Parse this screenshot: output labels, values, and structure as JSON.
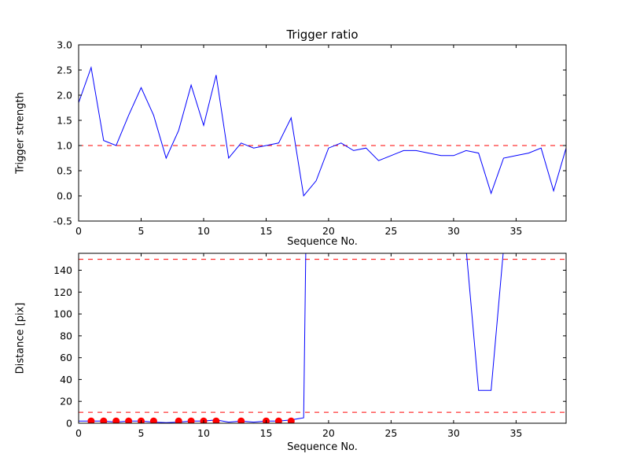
{
  "figure": {
    "background": "#ffffff",
    "axis_color": "#000000"
  },
  "chart_data": [
    {
      "type": "line",
      "title": "Trigger ratio",
      "xlabel": "Sequence No.",
      "ylabel": "Trigger strength",
      "xlim": [
        0,
        39
      ],
      "ylim": [
        -0.5,
        3.0
      ],
      "xticks": [
        0,
        5,
        10,
        15,
        20,
        25,
        30,
        35
      ],
      "yticks": [
        -0.5,
        0.0,
        0.5,
        1.0,
        1.5,
        2.0,
        2.5,
        3.0
      ],
      "grid": false,
      "legend": "none",
      "series": [
        {
          "name": "trigger-strength",
          "color": "#0000ff",
          "x": [
            0,
            1,
            2,
            3,
            4,
            5,
            6,
            7,
            8,
            9,
            10,
            11,
            12,
            13,
            14,
            15,
            16,
            17,
            18,
            19,
            20,
            21,
            22,
            23,
            24,
            25,
            26,
            27,
            28,
            29,
            30,
            31,
            32,
            33,
            34,
            35,
            36,
            37,
            38,
            39
          ],
          "y": [
            1.85,
            2.55,
            1.1,
            1.0,
            1.6,
            2.15,
            1.6,
            0.75,
            1.3,
            2.2,
            1.4,
            2.4,
            0.75,
            1.05,
            0.95,
            1.0,
            1.05,
            1.55,
            0.0,
            0.3,
            0.95,
            1.05,
            0.9,
            0.95,
            0.7,
            0.8,
            0.9,
            0.9,
            0.85,
            0.8,
            0.8,
            0.9,
            0.85,
            0.05,
            0.75,
            0.8,
            0.85,
            0.95,
            0.1,
            0.95
          ]
        }
      ],
      "hlines": [
        {
          "y": 1.0,
          "color": "#ff0000",
          "style": "dashed"
        }
      ]
    },
    {
      "type": "line",
      "title": "",
      "xlabel": "Sequence No.",
      "ylabel": "Distance [pix]",
      "xlim": [
        0,
        39
      ],
      "ylim": [
        0,
        155.5
      ],
      "xticks": [
        0,
        5,
        10,
        15,
        20,
        25,
        30,
        35
      ],
      "yticks": [
        0,
        20,
        40,
        60,
        80,
        100,
        120,
        140
      ],
      "grid": false,
      "legend": "none",
      "series": [
        {
          "name": "distance",
          "color": "#0000ff",
          "x": [
            0,
            1,
            2,
            3,
            4,
            5,
            6,
            7,
            8,
            9,
            10,
            11,
            12,
            13,
            14,
            15,
            16,
            17,
            18,
            19,
            20,
            21,
            22,
            23,
            24,
            25,
            26,
            27,
            28,
            29,
            30,
            31,
            32,
            33,
            34,
            35,
            36,
            37,
            38,
            39
          ],
          "y": [
            2,
            2,
            2,
            1,
            2,
            2,
            1,
            0.5,
            1,
            2,
            2,
            3,
            1,
            2,
            1,
            2,
            2,
            3,
            5,
            900,
            900,
            900,
            900,
            900,
            900,
            900,
            900,
            900,
            900,
            900,
            900,
            160,
            30,
            30,
            160,
            900,
            900,
            900,
            900,
            900
          ]
        }
      ],
      "markers": {
        "name": "matched-distance-points",
        "color": "#ff0000",
        "x": [
          1,
          2,
          3,
          4,
          5,
          6,
          8,
          9,
          10,
          11,
          13,
          15,
          16,
          17
        ],
        "y": [
          2,
          2,
          2,
          2,
          2,
          2,
          2,
          2,
          2,
          2,
          2,
          2,
          2,
          2
        ]
      },
      "hlines": [
        {
          "y": 150,
          "color": "#ff0000",
          "style": "dashed"
        },
        {
          "y": 10,
          "color": "#ff0000",
          "style": "dashed"
        }
      ]
    }
  ]
}
